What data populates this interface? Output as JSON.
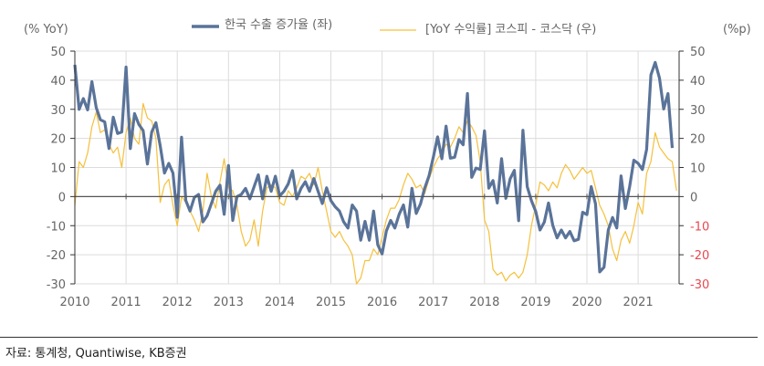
{
  "chart_data": {
    "type": "line",
    "left_axis_label": "(% YoY)",
    "right_axis_label": "(%p)",
    "ylim_left": [
      -30,
      50
    ],
    "ylim_right": [
      -30,
      50
    ],
    "yticks": [
      50,
      40,
      30,
      20,
      10,
      0,
      -10,
      -20,
      -30
    ],
    "xticks": [
      "2010",
      "2011",
      "2012",
      "2013",
      "2014",
      "2015",
      "2016",
      "2017",
      "2018",
      "2019",
      "2020",
      "2021"
    ],
    "grid": true,
    "legend_position": "top-center",
    "colors": {
      "exports": "#5a7399",
      "spread": "#f5c03c",
      "negative_right_tick": "#e8484f"
    },
    "dates": [
      "2010-01",
      "2010-02",
      "2010-03",
      "2010-04",
      "2010-05",
      "2010-06",
      "2010-07",
      "2010-08",
      "2010-09",
      "2010-10",
      "2010-11",
      "2010-12",
      "2011-01",
      "2011-02",
      "2011-03",
      "2011-04",
      "2011-05",
      "2011-06",
      "2011-07",
      "2011-08",
      "2011-09",
      "2011-10",
      "2011-11",
      "2011-12",
      "2012-01",
      "2012-02",
      "2012-03",
      "2012-04",
      "2012-05",
      "2012-06",
      "2012-07",
      "2012-08",
      "2012-09",
      "2012-10",
      "2012-11",
      "2012-12",
      "2013-01",
      "2013-02",
      "2013-03",
      "2013-04",
      "2013-05",
      "2013-06",
      "2013-07",
      "2013-08",
      "2013-09",
      "2013-10",
      "2013-11",
      "2013-12",
      "2014-01",
      "2014-02",
      "2014-03",
      "2014-04",
      "2014-05",
      "2014-06",
      "2014-07",
      "2014-08",
      "2014-09",
      "2014-10",
      "2014-11",
      "2014-12",
      "2015-01",
      "2015-02",
      "2015-03",
      "2015-04",
      "2015-05",
      "2015-06",
      "2015-07",
      "2015-08",
      "2015-09",
      "2015-10",
      "2015-11",
      "2015-12",
      "2016-01",
      "2016-02",
      "2016-03",
      "2016-04",
      "2016-05",
      "2016-06",
      "2016-07",
      "2016-08",
      "2016-09",
      "2016-10",
      "2016-11",
      "2016-12",
      "2017-01",
      "2017-02",
      "2017-03",
      "2017-04",
      "2017-05",
      "2017-06",
      "2017-07",
      "2017-08",
      "2017-09",
      "2017-10",
      "2017-11",
      "2017-12",
      "2018-01",
      "2018-02",
      "2018-03",
      "2018-04",
      "2018-05",
      "2018-06",
      "2018-07",
      "2018-08",
      "2018-09",
      "2018-10",
      "2018-11",
      "2018-12",
      "2019-01",
      "2019-02",
      "2019-03",
      "2019-04",
      "2019-05",
      "2019-06",
      "2019-07",
      "2019-08",
      "2019-09",
      "2019-10",
      "2019-11",
      "2019-12",
      "2020-01",
      "2020-02",
      "2020-03",
      "2020-04",
      "2020-05",
      "2020-06",
      "2020-07",
      "2020-08",
      "2020-09",
      "2020-10",
      "2020-11",
      "2020-12",
      "2021-01",
      "2021-02",
      "2021-03",
      "2021-04",
      "2021-05",
      "2021-06",
      "2021-07",
      "2021-08",
      "2021-09",
      "2021-10"
    ],
    "series": [
      {
        "name": "한국 수출 증가율 (좌)",
        "axis": "left",
        "values": [
          45.3,
          30,
          33.7,
          29.8,
          39.5,
          30.6,
          26.4,
          25.7,
          16.5,
          27.3,
          21.7,
          22.2,
          44.5,
          16.5,
          28.5,
          24.8,
          22.7,
          11.2,
          22.2,
          25.4,
          17.5,
          8.1,
          11.4,
          8.1,
          -7.1,
          20.4,
          -1.4,
          -5,
          -0.3,
          0.7,
          -8.7,
          -6.6,
          -2.4,
          1.8,
          3.9,
          -6.1,
          10.7,
          -8.2,
          0,
          0.7,
          2.8,
          -0.8,
          3.4,
          7.5,
          -0.8,
          7,
          1.8,
          7,
          0.2,
          1.8,
          4.4,
          8.9,
          -0.8,
          2.8,
          5.1,
          1.8,
          6.2,
          1.8,
          -2.4,
          3,
          -1.4,
          -3.5,
          -5,
          -8.7,
          -10.8,
          -2.9,
          -5,
          -15,
          -8.5,
          -15,
          -5,
          -16.6,
          -19.7,
          -11.8,
          -8.2,
          -10.8,
          -6.1,
          -2.9,
          -10.5,
          2.8,
          -5.8,
          -2.5,
          2.9,
          7.1,
          13.5,
          20.5,
          13,
          24.2,
          13.2,
          13.5,
          19.6,
          17.8,
          35.4,
          6.6,
          9.8,
          9.3,
          22.6,
          2.9,
          5.5,
          -2.2,
          13,
          -0.6,
          6.1,
          9,
          -8.3,
          22.8,
          3.4,
          -1.4,
          -5.1,
          -11.5,
          -8.8,
          -2.2,
          -9.9,
          -14.2,
          -11.5,
          -14.2,
          -12,
          -15.2,
          -14.7,
          -5.4,
          -6.2,
          3.4,
          -2.5,
          -25.9,
          -24.3,
          -11.5,
          -7.2,
          -10.8,
          7.1,
          -4.1,
          3.4,
          12.5,
          11.4,
          9.3,
          16.2,
          41.8,
          46.1,
          40.7,
          30.1,
          35.4,
          16.7,
          null
        ]
      },
      {
        "name": "[YoY 수익률] 코스피 - 코스닥 (우)",
        "axis": "right",
        "values": [
          -3,
          12,
          10,
          15,
          24,
          29,
          22,
          23,
          18,
          15,
          17,
          10,
          22,
          27,
          20,
          18,
          32,
          27,
          26,
          20,
          -2,
          4,
          6,
          -3,
          -10,
          0,
          -2,
          -5,
          -8,
          -12,
          -5,
          8,
          0,
          -4,
          5,
          13,
          3,
          2,
          -3,
          -12,
          -17,
          -15,
          -8,
          -17,
          -5,
          3,
          4,
          3,
          -2,
          -3,
          2,
          0,
          3,
          7,
          6,
          8,
          4,
          10,
          2,
          -5,
          -12,
          -14,
          -12,
          -15,
          -17,
          -20,
          -30,
          -28,
          -22,
          -22,
          -18,
          -20,
          -14,
          -8,
          -4,
          -4,
          -1,
          4,
          8,
          6,
          3,
          4,
          1,
          6,
          10,
          13,
          15,
          18,
          17,
          20,
          24,
          22,
          26,
          24,
          21,
          12,
          -8,
          -12,
          -25,
          -27,
          -26,
          -29,
          -27,
          -26,
          -28,
          -26,
          -20,
          -10,
          -3,
          5,
          4,
          2,
          5,
          3,
          8,
          11,
          9,
          6,
          8,
          10,
          8,
          9,
          3,
          -3,
          -6,
          -10,
          -18,
          -22,
          -15,
          -12,
          -16,
          -10,
          -2,
          -6,
          8,
          12,
          22,
          17,
          15,
          13,
          12,
          2
        ]
      }
    ]
  },
  "legend": {
    "exports_label": "한국 수출 증가율 (좌)",
    "spread_label": "[YoY 수익률] 코스피 - 코스닥 (우)"
  },
  "source": "자료: 통계청, Quantiwise, KB증권"
}
